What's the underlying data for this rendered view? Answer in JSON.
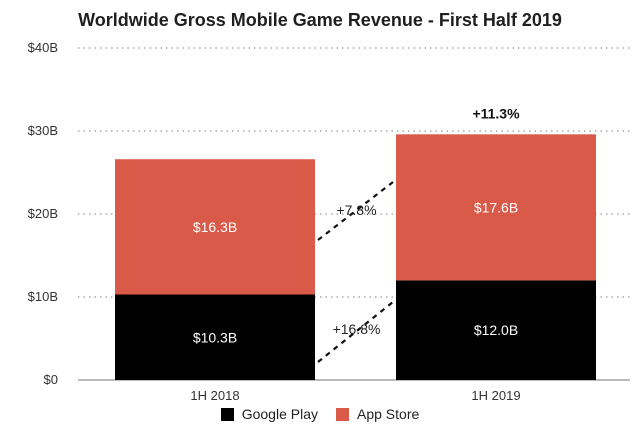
{
  "chart_data": {
    "type": "bar",
    "stacked": true,
    "title": "Worldwide Gross Mobile Game Revenue - First Half 2019",
    "xlabel": "",
    "ylabel": "",
    "categories": [
      "1H 2018",
      "1H 2019"
    ],
    "series": [
      {
        "name": "Google Play",
        "color": "#000000",
        "values": [
          10.3,
          12.0
        ],
        "value_labels": [
          "$10.3B",
          "$12.0B"
        ]
      },
      {
        "name": "App Store",
        "color": "#d95a48",
        "values": [
          16.3,
          17.6
        ],
        "value_labels": [
          "$16.3B",
          "$17.6B"
        ]
      }
    ],
    "ylim": [
      0,
      40
    ],
    "yticks": [
      0,
      10,
      20,
      30,
      40
    ],
    "ytick_labels": [
      "$0",
      "$10B",
      "$20B",
      "$30B",
      "$40B"
    ],
    "grid": "dotted horizontal",
    "legend_position": "bottom-center",
    "annotations": {
      "google_play_growth": "+16.8%",
      "app_store_growth": "+7.8%",
      "total_growth": "+11.3%"
    }
  }
}
